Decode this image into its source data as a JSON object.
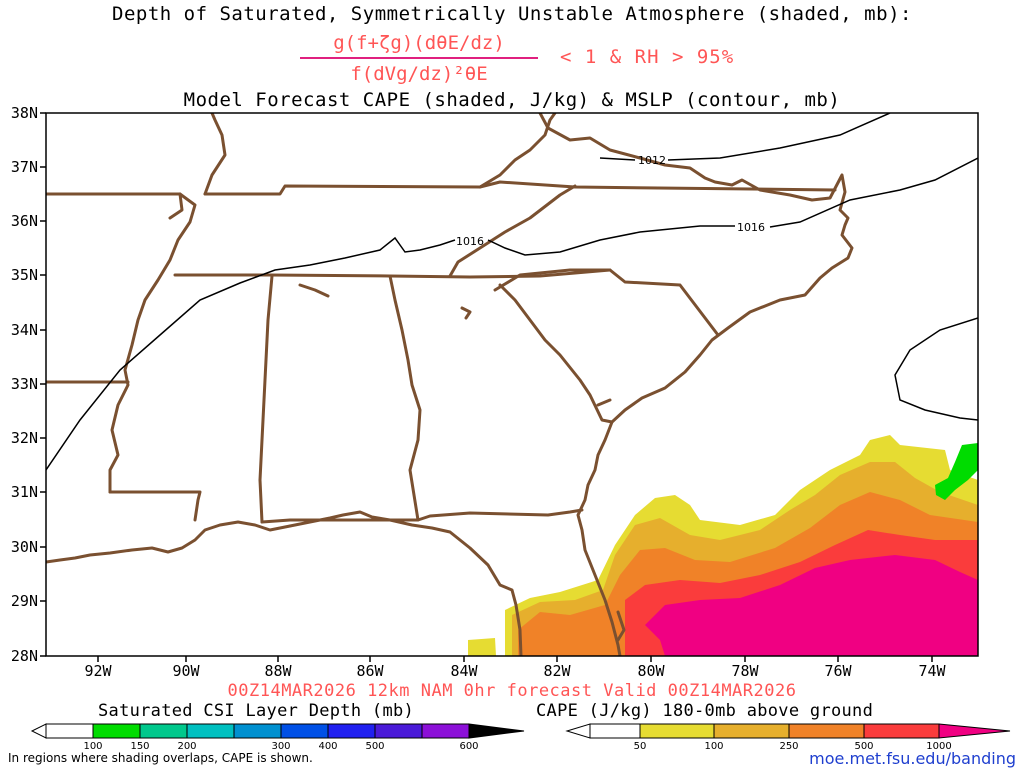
{
  "header": {
    "title_line1": "Depth of Saturated, Symmetrically Unstable Atmosphere (shaded, mb):",
    "formula_numerator": "g(f+ζg)(dθE/dz)",
    "formula_denominator": "f(dVg/dz)²θE",
    "condition": "< 1 & RH > 95%",
    "title_line3": "Model Forecast CAPE (shaded, J/kg) & MSLP (contour, mb)"
  },
  "map": {
    "lat_labels": [
      "38N",
      "37N",
      "36N",
      "35N",
      "34N",
      "33N",
      "32N",
      "31N",
      "30N",
      "29N",
      "28N"
    ],
    "lon_labels": [
      "92W",
      "90W",
      "88W",
      "86W",
      "84W",
      "82W",
      "80W",
      "78W",
      "76W",
      "74W"
    ],
    "isobars": [
      "1012",
      "1016"
    ],
    "colors": {
      "border": "#7a5030",
      "isobar": "#000000",
      "cape_50": "#e6dc32",
      "cape_100": "#e6af2d",
      "cape_250": "#f08228",
      "cape_500": "#fa3c3c",
      "cape_1000": "#f00082",
      "csi_100": "#00dc00"
    }
  },
  "footer": {
    "run_info": "00Z14MAR2026 12km NAM 0hr forecast Valid 00Z14MAR2026",
    "legend_left_title": "Saturated CSI Layer Depth (mb)",
    "legend_left_ticks": [
      "100",
      "150",
      "200",
      "300",
      "400",
      "500",
      "600"
    ],
    "legend_right_title": "CAPE (J/kg) 180-0mb above ground",
    "legend_right_ticks": [
      "50",
      "100",
      "250",
      "500",
      "1000"
    ],
    "note": "In regions where shading overlaps, CAPE is shown.",
    "site": "moe.met.fsu.edu/banding"
  }
}
